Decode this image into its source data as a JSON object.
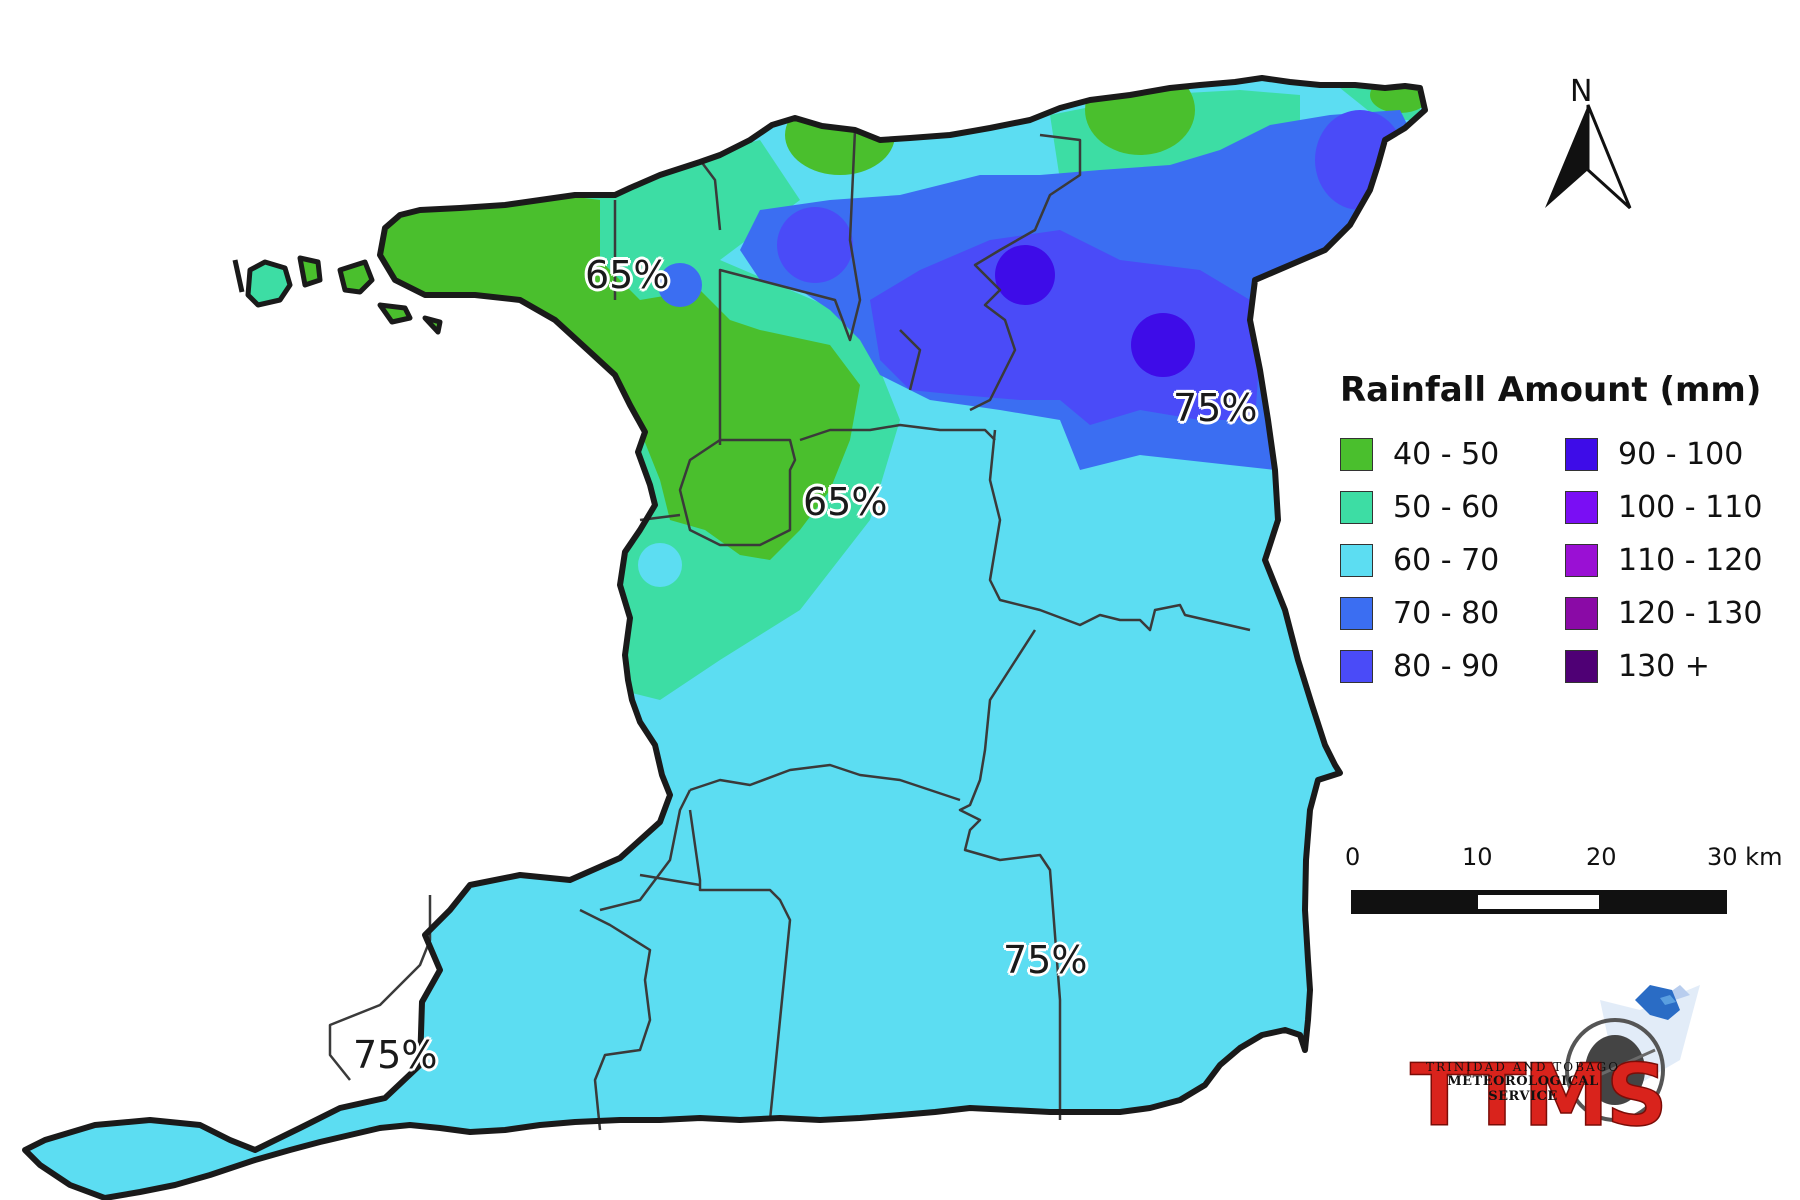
{
  "legend": {
    "title": "Rainfall Amount (mm)",
    "items": [
      {
        "label": "40 - 50",
        "color": "#4abf2d"
      },
      {
        "label": "50 - 60",
        "color": "#3ddda4"
      },
      {
        "label": "60 - 70",
        "color": "#5cddf2"
      },
      {
        "label": "70 - 80",
        "color": "#3b6ef2"
      },
      {
        "label": "80 - 90",
        "color": "#4a4bf8"
      },
      {
        "label": "90 - 100",
        "color": "#3e0ce8"
      },
      {
        "label": "100 - 110",
        "color": "#7a0ef4"
      },
      {
        "label": "110 - 120",
        "color": "#9a10d4"
      },
      {
        "label": "120 - 130",
        "color": "#8a0aa6"
      },
      {
        "label": "130 +",
        "color": "#4f0075"
      }
    ]
  },
  "north_arrow": {
    "label": "N",
    "icon": "north-arrow-icon"
  },
  "scale_bar": {
    "ticks": [
      "0",
      "10",
      "20",
      "30 km"
    ]
  },
  "percent_labels": [
    "65%",
    "65%",
    "75%",
    "75%",
    "75%"
  ],
  "logo": {
    "acronym": "TTMS",
    "line1": "TRINIDAD AND TOBAGO",
    "line2": "METEOROLOGICAL SERVICE"
  }
}
